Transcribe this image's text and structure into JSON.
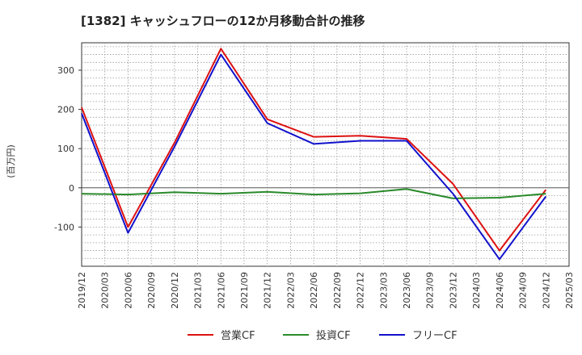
{
  "chart_data": {
    "type": "line",
    "title": "[1382]  キャッシュフローの12か月移動合計の推移",
    "ylabel": "(百万円)",
    "xlabel": "",
    "ylim": [
      -200,
      370
    ],
    "yticks": [
      -100,
      0,
      100,
      200,
      300
    ],
    "categories": [
      "2019/12",
      "2020/03",
      "2020/06",
      "2020/09",
      "2020/12",
      "2021/03",
      "2021/06",
      "2021/09",
      "2021/12",
      "2022/03",
      "2022/06",
      "2022/09",
      "2022/12",
      "2023/03",
      "2023/06",
      "2023/09",
      "2023/12",
      "2024/03",
      "2024/06",
      "2024/09",
      "2024/12",
      "2025/03"
    ],
    "series": [
      {
        "name": "営業CF",
        "color": "#dd1111",
        "values": [
          205,
          null,
          -100,
          null,
          115,
          null,
          355,
          null,
          175,
          null,
          130,
          null,
          133,
          null,
          125,
          null,
          10,
          null,
          -160,
          null,
          -5,
          null
        ]
      },
      {
        "name": "投資CF",
        "color": "#2a8a2a",
        "values": [
          -15,
          null,
          -17,
          null,
          -11,
          null,
          -15,
          null,
          -10,
          null,
          -17,
          null,
          -14,
          null,
          -3,
          null,
          -27,
          null,
          -25,
          null,
          -15,
          null
        ]
      },
      {
        "name": "フリーCF",
        "color": "#1111cc",
        "values": [
          190,
          null,
          -115,
          null,
          105,
          null,
          340,
          null,
          165,
          null,
          112,
          null,
          120,
          null,
          120,
          null,
          -15,
          null,
          -182,
          null,
          -22,
          null
        ]
      }
    ],
    "legend_position": "bottom",
    "grid": true
  }
}
